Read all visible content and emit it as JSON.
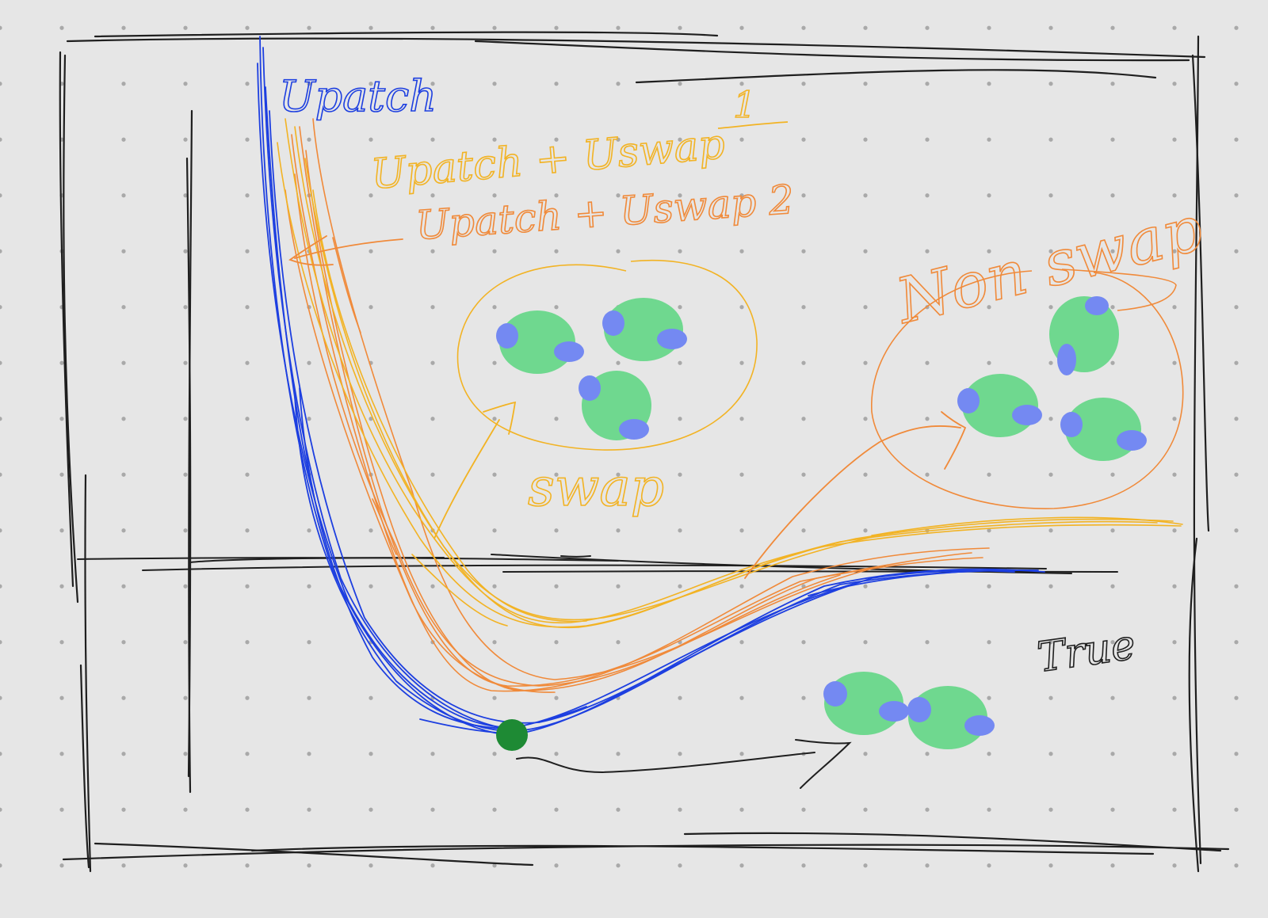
{
  "labels": {
    "upatch": "Upatch",
    "upatch_uswap_1": "Upatch + Uswap",
    "index_1": "1",
    "upatch_uswap_2": "Upatch + Uswap 2",
    "swap": "swap",
    "non_swap": "Non swap",
    "true_label": "True"
  },
  "colors": {
    "background": "#e6e6e6",
    "dot": "#a9a9a9",
    "frame": "#1f1f1f",
    "upatch_curve": "#1d3fe0",
    "uswap1_curve": "#f2b324",
    "uswap2_curve": "#f08a3a",
    "blob_fill": "#6fd88f",
    "blob_patch": "#7489f2",
    "minimum_point": "#1e8a34"
  }
}
